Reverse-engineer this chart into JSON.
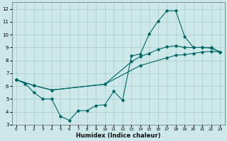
{
  "bg_color": "#cce8e8",
  "grid_color": "#aacccc",
  "line_color": "#006666",
  "xlabel": "Humidex (Indice chaleur)",
  "xlim": [
    -0.5,
    23.5
  ],
  "ylim": [
    3,
    12.5
  ],
  "xticks": [
    0,
    1,
    2,
    3,
    4,
    5,
    6,
    7,
    8,
    9,
    10,
    11,
    12,
    13,
    14,
    15,
    16,
    17,
    18,
    19,
    20,
    21,
    22,
    23
  ],
  "yticks": [
    3,
    4,
    5,
    6,
    7,
    8,
    9,
    10,
    11,
    12
  ],
  "line1_x": [
    0,
    1,
    2,
    3,
    4,
    5,
    6,
    7,
    8,
    9,
    10,
    11,
    12,
    13,
    14,
    15,
    16,
    17,
    18,
    19,
    20,
    21,
    22,
    23
  ],
  "line1_y": [
    6.5,
    6.2,
    5.5,
    5.0,
    5.0,
    3.65,
    3.35,
    4.1,
    4.1,
    4.5,
    4.55,
    5.6,
    4.9,
    8.35,
    8.5,
    10.05,
    11.05,
    11.85,
    11.85,
    9.85,
    9.0,
    9.0,
    9.0,
    8.65
  ],
  "line2_x": [
    0,
    2,
    4,
    10,
    13,
    14,
    15,
    16,
    17,
    18,
    19,
    20,
    21,
    22,
    23
  ],
  "line2_y": [
    6.5,
    6.05,
    5.7,
    6.15,
    7.9,
    8.3,
    8.55,
    8.85,
    9.05,
    9.15,
    9.0,
    9.0,
    9.0,
    8.95,
    8.65
  ],
  "line3_x": [
    0,
    2,
    4,
    10,
    14,
    17,
    18,
    19,
    20,
    21,
    22,
    23
  ],
  "line3_y": [
    6.5,
    6.05,
    5.7,
    6.15,
    7.6,
    8.2,
    8.4,
    8.45,
    8.55,
    8.65,
    8.7,
    8.65
  ]
}
